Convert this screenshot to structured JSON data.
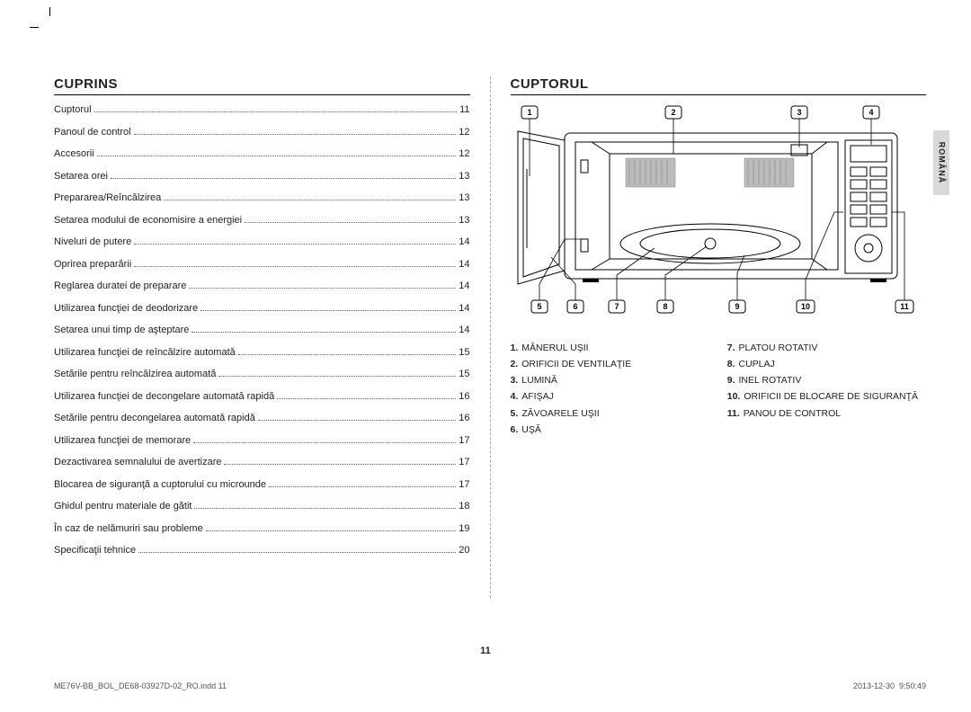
{
  "toc_title": "CUPRINS",
  "section_title": "CUPTORUL",
  "side_tab": "ROMÂNĂ",
  "page_number": "11",
  "footer_left": "ME76V-BB_BOL_DE68-03927D-02_RO.indd   11",
  "footer_right": "2013-12-30   \u000f\u000f 9:50:49",
  "toc": [
    {
      "label": "Cuptorul",
      "page": "11"
    },
    {
      "label": "Panoul de control",
      "page": "12"
    },
    {
      "label": "Accesorii",
      "page": "12"
    },
    {
      "label": "Setarea orei",
      "page": "13"
    },
    {
      "label": "Prepararea/Reîncălzirea",
      "page": "13"
    },
    {
      "label": "Setarea modului de economisire a energiei",
      "page": "13"
    },
    {
      "label": "Niveluri de putere",
      "page": "14"
    },
    {
      "label": "Oprirea preparării",
      "page": "14"
    },
    {
      "label": "Reglarea duratei de preparare",
      "page": "14"
    },
    {
      "label": "Utilizarea funcţiei de deodorizare",
      "page": "14"
    },
    {
      "label": "Setarea unui timp de aşteptare",
      "page": "14"
    },
    {
      "label": "Utilizarea funcţiei de reîncălzire automată",
      "page": "15"
    },
    {
      "label": "Setările pentru reîncălzirea automată",
      "page": "15"
    },
    {
      "label": "Utilizarea funcţiei de decongelare automată rapidă",
      "page": "16"
    },
    {
      "label": "Setările pentru decongelarea automată rapidă",
      "page": "16"
    },
    {
      "label": "Utilizarea funcţiei de memorare",
      "page": "17"
    },
    {
      "label": "Dezactivarea semnalului de avertizare",
      "page": "17"
    },
    {
      "label": "Blocarea de siguranţă a cuptorului cu microunde",
      "page": "17"
    },
    {
      "label": "Ghidul pentru materiale de gătit",
      "page": "18"
    },
    {
      "label": "În caz de nelămuriri sau probleme",
      "page": "19"
    },
    {
      "label": "Specificaţii tehnice",
      "page": "20"
    }
  ],
  "callouts_top": [
    "1",
    "2",
    "3",
    "4"
  ],
  "callouts_bottom": [
    "5",
    "6",
    "7",
    "8",
    "9",
    "10",
    "11"
  ],
  "parts_left": [
    {
      "n": "1.",
      "t": "MÂNERUL UŞII"
    },
    {
      "n": "2.",
      "t": "ORIFICII DE VENTILAŢIE"
    },
    {
      "n": "3.",
      "t": "LUMINĂ"
    },
    {
      "n": "4.",
      "t": "AFIŞAJ"
    },
    {
      "n": "5.",
      "t": "ZĂVOARELE UŞII"
    },
    {
      "n": "6.",
      "t": "UŞĂ"
    }
  ],
  "parts_right": [
    {
      "n": "7.",
      "t": "PLATOU ROTATIV"
    },
    {
      "n": "8.",
      "t": "CUPLAJ"
    },
    {
      "n": "9.",
      "t": "INEL ROTATIV"
    },
    {
      "n": "10.",
      "t": "ORIFICII DE BLOCARE DE SIGURANŢĂ"
    },
    {
      "n": "11.",
      "t": "PANOU DE CONTROL"
    }
  ],
  "colors": {
    "tab_bg": "#d9d9d9",
    "text": "#222222"
  }
}
